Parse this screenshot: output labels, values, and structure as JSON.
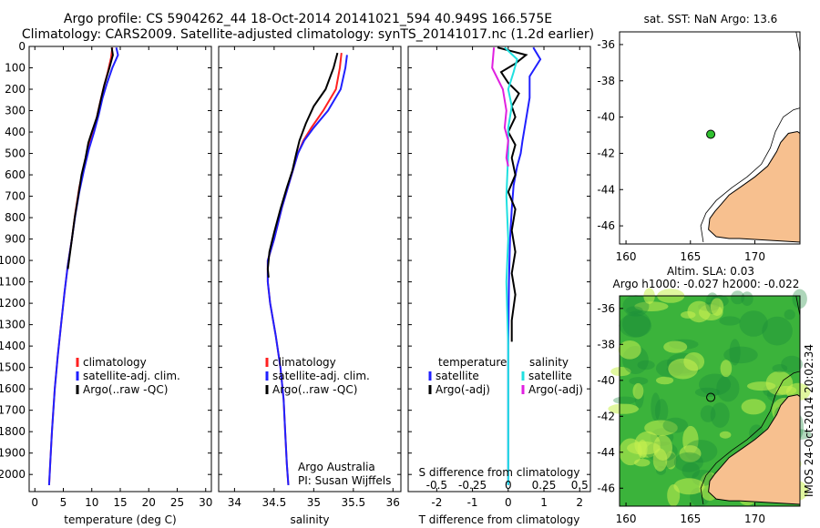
{
  "header": {
    "line1": "Argo profile: CS 5904262_44 18-Oct-2014 20141021_594 40.949S 166.575E",
    "line2": "Climatology: CARS2009. Satellite-adjusted climatology: synTS_20141017.nc (1.2d earlier)"
  },
  "credit": {
    "org": "Argo Australia",
    "pi": "PI: Susan Wijffels"
  },
  "chart_data": [
    {
      "type": "line",
      "id": "temperature-profile",
      "xlabel": "temperature (deg C)",
      "xlim": [
        -1,
        31
      ],
      "ylim": [
        2080,
        0
      ],
      "yticks": [
        0,
        100,
        200,
        300,
        400,
        500,
        600,
        700,
        800,
        900,
        1000,
        1100,
        1200,
        1300,
        1400,
        1500,
        1600,
        1700,
        1800,
        1900,
        2000
      ],
      "xticks": [
        0,
        5,
        10,
        15,
        20,
        25,
        30
      ],
      "legend": [
        "climatology",
        "satellite-adj. clim.",
        "Argo(..raw -QC)"
      ],
      "series": [
        {
          "name": "climatology",
          "color": "#ff2020",
          "points": [
            [
              13.6,
              5
            ],
            [
              13.4,
              50
            ],
            [
              12.8,
              120
            ],
            [
              12.0,
              200
            ],
            [
              11.3,
              280
            ],
            [
              10.5,
              380
            ],
            [
              9.6,
              460
            ],
            [
              8.6,
              560
            ],
            [
              7.8,
              660
            ],
            [
              7.1,
              780
            ],
            [
              6.5,
              900
            ],
            [
              5.8,
              1020
            ],
            [
              5.2,
              1150
            ],
            [
              4.6,
              1300
            ],
            [
              4.0,
              1450
            ],
            [
              3.5,
              1600
            ],
            [
              3.0,
              1800
            ],
            [
              2.7,
              1950
            ],
            [
              2.5,
              2050
            ]
          ]
        },
        {
          "name": "satellite-adj. clim.",
          "color": "#2020ff",
          "points": [
            [
              14.3,
              5
            ],
            [
              14.6,
              40
            ],
            [
              13.6,
              100
            ],
            [
              12.7,
              170
            ],
            [
              11.9,
              240
            ],
            [
              11.2,
              320
            ],
            [
              10.4,
              400
            ],
            [
              9.5,
              480
            ],
            [
              8.6,
              580
            ],
            [
              7.8,
              680
            ],
            [
              7.1,
              790
            ],
            [
              6.5,
              900
            ],
            [
              5.8,
              1020
            ],
            [
              5.2,
              1150
            ],
            [
              4.6,
              1300
            ],
            [
              4.0,
              1450
            ],
            [
              3.5,
              1600
            ],
            [
              3.0,
              1800
            ],
            [
              2.7,
              1950
            ],
            [
              2.5,
              2050
            ]
          ]
        },
        {
          "name": "Argo(..raw -QC)",
          "color": "#000000",
          "points": [
            [
              13.5,
              5
            ],
            [
              13.7,
              40
            ],
            [
              13.1,
              100
            ],
            [
              12.2,
              180
            ],
            [
              11.5,
              260
            ],
            [
              10.9,
              330
            ],
            [
              10.0,
              400
            ],
            [
              9.4,
              450
            ],
            [
              8.9,
              520
            ],
            [
              8.2,
              600
            ],
            [
              7.6,
              700
            ],
            [
              7.0,
              800
            ],
            [
              6.4,
              920
            ],
            [
              5.8,
              1040
            ]
          ]
        }
      ]
    },
    {
      "type": "line",
      "id": "salinity-profile",
      "xlabel": "salinity",
      "xlim": [
        33.8,
        36.1
      ],
      "ylim": [
        2080,
        0
      ],
      "xticks": [
        34,
        34.5,
        35,
        35.5,
        36
      ],
      "legend": [
        "climatology",
        "satellite-adj. clim.",
        "Argo(..raw -QC)"
      ],
      "series": [
        {
          "name": "climatology",
          "color": "#ff2020",
          "points": [
            [
              35.35,
              30
            ],
            [
              35.33,
              100
            ],
            [
              35.28,
              200
            ],
            [
              35.12,
              300
            ],
            [
              34.97,
              380
            ],
            [
              34.87,
              440
            ],
            [
              34.8,
              500
            ],
            [
              34.72,
              600
            ],
            [
              34.6,
              750
            ],
            [
              34.5,
              900
            ],
            [
              34.42,
              1000
            ],
            [
              34.42,
              1100
            ],
            [
              34.45,
              1200
            ],
            [
              34.52,
              1350
            ],
            [
              34.58,
              1500
            ],
            [
              34.62,
              1650
            ],
            [
              34.64,
              1800
            ],
            [
              34.66,
              1950
            ],
            [
              34.68,
              2050
            ]
          ]
        },
        {
          "name": "satellite-adj. clim.",
          "color": "#2020ff",
          "points": [
            [
              35.42,
              40
            ],
            [
              35.4,
              100
            ],
            [
              35.34,
              200
            ],
            [
              35.18,
              300
            ],
            [
              35.0,
              380
            ],
            [
              34.88,
              440
            ],
            [
              34.8,
              500
            ],
            [
              34.72,
              600
            ],
            [
              34.6,
              750
            ],
            [
              34.5,
              900
            ],
            [
              34.42,
              1000
            ],
            [
              34.42,
              1100
            ],
            [
              34.45,
              1200
            ],
            [
              34.52,
              1350
            ],
            [
              34.58,
              1500
            ],
            [
              34.62,
              1650
            ],
            [
              34.64,
              1800
            ],
            [
              34.66,
              1950
            ],
            [
              34.68,
              2050
            ]
          ]
        },
        {
          "name": "Argo(..raw -QC)",
          "color": "#000000",
          "points": [
            [
              35.3,
              30
            ],
            [
              35.25,
              100
            ],
            [
              35.15,
              200
            ],
            [
              35.0,
              280
            ],
            [
              34.9,
              360
            ],
            [
              34.82,
              440
            ],
            [
              34.78,
              500
            ],
            [
              34.73,
              580
            ],
            [
              34.66,
              660
            ],
            [
              34.58,
              760
            ],
            [
              34.5,
              870
            ],
            [
              34.44,
              960
            ],
            [
              34.42,
              1040
            ],
            [
              34.43,
              1080
            ]
          ]
        }
      ]
    },
    {
      "type": "line",
      "id": "difference-profile",
      "xlabel": "T difference from climatology",
      "x2label": "S difference from climatology",
      "xlim": [
        -2.8,
        2.3
      ],
      "ylim": [
        2080,
        0
      ],
      "xticks": [
        -2,
        -1,
        0,
        1,
        2
      ],
      "x2ticks": [
        -0.5,
        -0.25,
        0,
        0.25,
        0.5
      ],
      "legend_temperature_title": "temperature",
      "legend_salinity_title": "salinity",
      "legend": [
        "satellite",
        "Argo(-adj)",
        "satellite",
        "Argo(-adj)"
      ],
      "series": [
        {
          "name": "satellite",
          "color": "#2020ff",
          "points": [
            [
              0.7,
              5
            ],
            [
              0.9,
              60
            ],
            [
              0.6,
              140
            ],
            [
              0.6,
              240
            ],
            [
              0.5,
              340
            ],
            [
              0.4,
              440
            ],
            [
              0.35,
              500
            ],
            [
              0.25,
              560
            ],
            [
              0.15,
              650
            ],
            [
              0.1,
              760
            ],
            [
              0.05,
              900
            ],
            [
              0.02,
              1100
            ],
            [
              0.0,
              1400
            ],
            [
              0.0,
              2050
            ]
          ]
        },
        {
          "name": "Argo(-adj)",
          "color": "#000000",
          "points": [
            [
              -0.3,
              5
            ],
            [
              0.5,
              40
            ],
            [
              0.2,
              80
            ],
            [
              -0.2,
              120
            ],
            [
              0.0,
              170
            ],
            [
              0.3,
              220
            ],
            [
              0.1,
              280
            ],
            [
              0.2,
              330
            ],
            [
              0.0,
              400
            ],
            [
              0.2,
              460
            ],
            [
              0.1,
              520
            ],
            [
              0.2,
              600
            ],
            [
              0.0,
              680
            ],
            [
              0.2,
              760
            ],
            [
              0.1,
              860
            ],
            [
              0.2,
              960
            ],
            [
              0.1,
              1060
            ],
            [
              0.2,
              1160
            ],
            [
              0.1,
              1280
            ],
            [
              0.1,
              1380
            ]
          ]
        },
        {
          "name": "satellite",
          "color": "#20e0e0",
          "points": [
            [
              -0.1,
              5
            ],
            [
              0.25,
              60
            ],
            [
              0.15,
              120
            ],
            [
              0.0,
              200
            ],
            [
              0.1,
              280
            ],
            [
              0.0,
              380
            ],
            [
              0.0,
              500
            ],
            [
              -0.05,
              700
            ],
            [
              0.0,
              900
            ],
            [
              -0.05,
              1100
            ],
            [
              0.0,
              1400
            ],
            [
              0.0,
              1700
            ],
            [
              0.0,
              2050
            ]
          ]
        },
        {
          "name": "Argo(-adj)",
          "color": "#e020e0",
          "points": [
            [
              -0.4,
              5
            ],
            [
              -0.45,
              100
            ],
            [
              -0.15,
              200
            ],
            [
              -0.05,
              300
            ],
            [
              -0.1,
              380
            ],
            [
              0.0,
              440
            ],
            [
              -0.05,
              520
            ],
            [
              0.0,
              560
            ]
          ]
        }
      ]
    },
    {
      "type": "scatter",
      "id": "sst-map",
      "title": "sat. SST: NaN Argo: 13.6",
      "xlim": [
        159.5,
        173.5
      ],
      "ylim": [
        -47,
        -35.3
      ],
      "xticks": [
        160,
        165,
        170
      ],
      "yticks": [
        -36,
        -38,
        -40,
        -42,
        -44,
        -46
      ],
      "argo_position": [
        166.575,
        -40.949
      ],
      "colors": {
        "land": "#f7c08f",
        "marker": "#30c030"
      }
    },
    {
      "type": "heatmap",
      "id": "sla-map",
      "title": "Altim. SLA: 0.03",
      "subtitle": "Argo h1000: -0.027 h2000: -0.022",
      "side_label": "IMOS 24-Oct-2014 20:02:34",
      "xlim": [
        159.5,
        173.5
      ],
      "ylim": [
        -47,
        -35.3
      ],
      "xticks": [
        160,
        165,
        170
      ],
      "yticks": [
        -36,
        -38,
        -40,
        -42,
        -44,
        -46
      ],
      "argo_position": [
        166.575,
        -40.949
      ],
      "colors": {
        "land": "#f7c08f",
        "base": "#3bb33b",
        "light": "#c8f050",
        "dark": "#188a3a"
      }
    }
  ]
}
